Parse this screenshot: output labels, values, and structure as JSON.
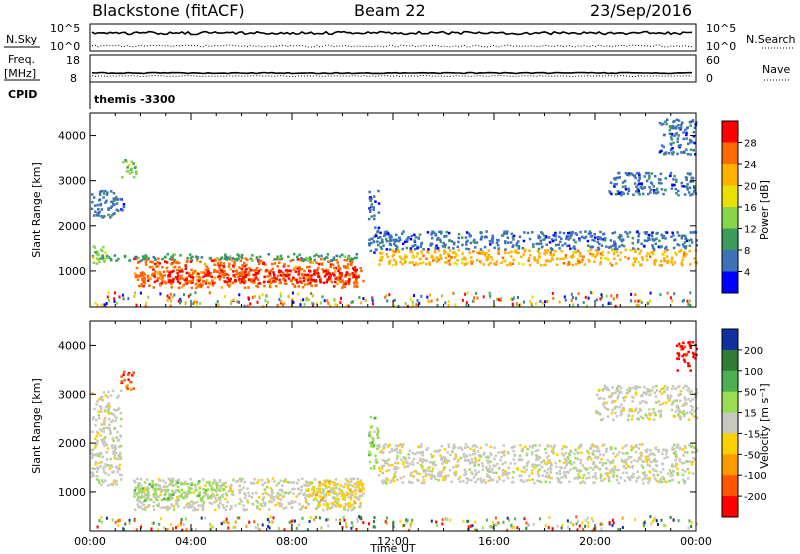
{
  "header": {
    "radar": "Blackstone (fitACF)",
    "beam": "Beam 22",
    "date": "23/Sep/2016"
  },
  "status_panels": {
    "nsky_label": "N.Sky",
    "nsearch_label": "N.Search",
    "nsky_ticks": [
      "10^5",
      "10^0"
    ],
    "nsearch_ticks": [
      "10^5",
      "10^0"
    ],
    "freq_label": [
      "Freq.",
      "[MHz]"
    ],
    "freq_ticks": [
      "18",
      "8"
    ],
    "nave_label": "Nave",
    "nave_ticks": [
      "60",
      "0"
    ],
    "cpid_label": "CPID",
    "cpid_value": "themis -3300"
  },
  "chart_data": [
    {
      "type": "heatmap",
      "name": "power",
      "ylabel": "Slant Range [km]",
      "xlabel": "",
      "yticks": [
        1000,
        2000,
        3000,
        4000
      ],
      "ylim": [
        200,
        4500
      ],
      "xlim": [
        0,
        24
      ],
      "colorbar": {
        "label": "Power [dB]",
        "ticks": [
          "28",
          "24",
          "20",
          "16",
          "12",
          "8",
          "4"
        ],
        "colors": [
          "#ff0000",
          "#ff6a00",
          "#ffb000",
          "#e8e000",
          "#88d44a",
          "#3c9c5a",
          "#3c73b8",
          "#0000ff"
        ]
      },
      "regions": [
        {
          "t0": 0.0,
          "t1": 0.6,
          "r0": 1150,
          "r1": 1650,
          "level": 4
        },
        {
          "t0": 0.0,
          "t1": 1.3,
          "r0": 2200,
          "r1": 2800,
          "level": 6
        },
        {
          "t0": 1.2,
          "t1": 1.8,
          "r0": 3100,
          "r1": 3500,
          "level": 4
        },
        {
          "t0": 1.7,
          "t1": 10.8,
          "r0": 650,
          "r1": 1300,
          "level": 1
        },
        {
          "t0": 2.5,
          "t1": 10.6,
          "r0": 750,
          "r1": 1050,
          "level": 0
        },
        {
          "t0": 0.4,
          "t1": 10.8,
          "r0": 1250,
          "r1": 1400,
          "level": 5
        },
        {
          "t0": 11.0,
          "t1": 11.4,
          "r0": 1400,
          "r1": 2800,
          "level": 6
        },
        {
          "t0": 11.4,
          "t1": 24.0,
          "r0": 1150,
          "r1": 1500,
          "level": 2
        },
        {
          "t0": 11.4,
          "t1": 24.0,
          "r0": 1500,
          "r1": 1900,
          "level": 6
        },
        {
          "t0": 20.5,
          "t1": 24.0,
          "r0": 2700,
          "r1": 3200,
          "level": 6
        },
        {
          "t0": 22.5,
          "t1": 24.0,
          "r0": 3600,
          "r1": 4400,
          "level": 6
        }
      ]
    },
    {
      "type": "heatmap",
      "name": "velocity",
      "ylabel": "Slant Range [km]",
      "xlabel": "Time UT",
      "xticks": [
        "00:00",
        "04:00",
        "08:00",
        "12:00",
        "16:00",
        "20:00",
        "00:00"
      ],
      "yticks": [
        1000,
        2000,
        3000,
        4000
      ],
      "ylim": [
        200,
        4500
      ],
      "xlim": [
        0,
        24
      ],
      "colorbar": {
        "label": "Velocity [m s⁻¹]",
        "ticks": [
          "200",
          "100",
          "50",
          "15",
          "-15",
          "-50",
          "-100",
          "-200"
        ],
        "colors": [
          "#1030a0",
          "#2e7d32",
          "#4caf50",
          "#99dd55",
          "#c8c8c0",
          "#ffd000",
          "#ff9900",
          "#ff5500",
          "#ff0000"
        ]
      },
      "regions": [
        {
          "t0": 0.0,
          "t1": 1.2,
          "r0": 1150,
          "r1": 3100,
          "level": 4
        },
        {
          "t0": 1.2,
          "t1": 1.7,
          "r0": 3100,
          "r1": 3500,
          "level": 7
        },
        {
          "t0": 1.7,
          "t1": 10.8,
          "r0": 650,
          "r1": 1300,
          "level": 4
        },
        {
          "t0": 1.7,
          "t1": 5.5,
          "r0": 850,
          "r1": 1250,
          "level": 3
        },
        {
          "t0": 8.5,
          "t1": 10.8,
          "r0": 700,
          "r1": 1250,
          "level": 5
        },
        {
          "t0": 11.0,
          "t1": 11.4,
          "r0": 1500,
          "r1": 2600,
          "level": 3
        },
        {
          "t0": 11.4,
          "t1": 24.0,
          "r0": 1200,
          "r1": 2000,
          "level": 4
        },
        {
          "t0": 20.0,
          "t1": 24.0,
          "r0": 2500,
          "r1": 3200,
          "level": 4
        },
        {
          "t0": 23.2,
          "t1": 24.0,
          "r0": 3500,
          "r1": 4100,
          "level": 8
        }
      ]
    }
  ]
}
